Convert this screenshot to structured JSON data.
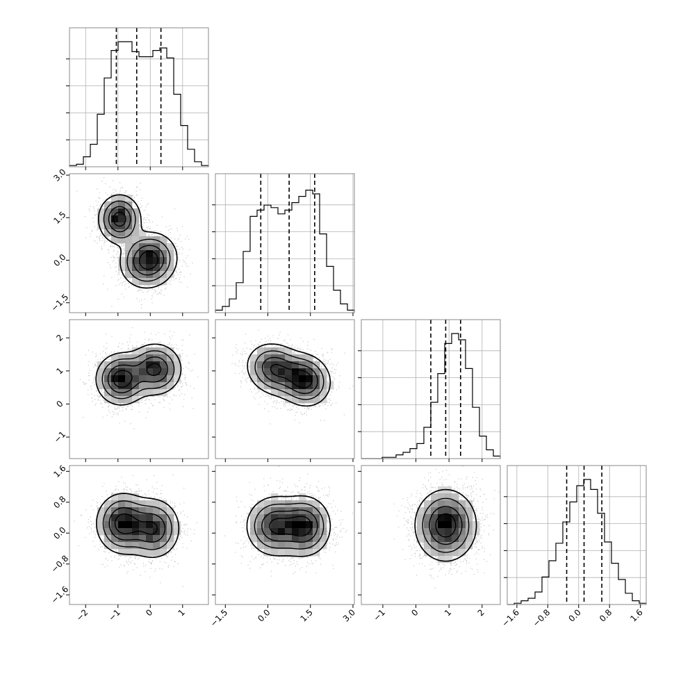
{
  "chart_data": {
    "type": "corner",
    "title": "",
    "dimensions": [
      {
        "range": [
          -2.5,
          1.8
        ],
        "ticks": [
          "−2",
          "−1",
          "0",
          "1"
        ],
        "tick_values": [
          -2,
          -1,
          0,
          1
        ],
        "quantiles": [
          -1.05,
          -0.42,
          0.33
        ]
      },
      {
        "range": [
          -1.85,
          3.05
        ],
        "ticks": [
          "−1.5",
          "0.0",
          "1.5",
          "3.0"
        ],
        "tick_values": [
          -1.5,
          0.0,
          1.5,
          3.0
        ],
        "quantiles": [
          -0.25,
          0.75,
          1.65
        ]
      },
      {
        "range": [
          -1.65,
          2.55
        ],
        "ticks": [
          "−1",
          "0",
          "1",
          "2"
        ],
        "tick_values": [
          -1,
          0,
          1,
          2
        ],
        "quantiles": [
          0.45,
          0.9,
          1.35
        ]
      },
      {
        "range": [
          -1.85,
          1.75
        ],
        "ticks": [
          "−1.6",
          "−0.8",
          "0.0",
          "0.8",
          "1.6"
        ],
        "tick_values": [
          -1.6,
          -0.8,
          0.0,
          0.8,
          1.6
        ],
        "quantiles": [
          -0.31,
          0.14,
          0.6
        ]
      }
    ],
    "histograms": [
      {
        "edges_start": -2.5,
        "bin_width": 0.215,
        "counts": [
          0.01,
          0.02,
          0.08,
          0.18,
          0.42,
          0.71,
          0.93,
          1.0,
          1.0,
          0.92,
          0.88,
          0.88,
          0.93,
          0.95,
          0.87,
          0.58,
          0.33,
          0.14,
          0.04,
          0.01
        ]
      },
      {
        "edges_start": -1.85,
        "bin_width": 0.245,
        "counts": [
          0.02,
          0.05,
          0.11,
          0.24,
          0.49,
          0.77,
          0.82,
          0.86,
          0.84,
          0.79,
          0.82,
          0.88,
          0.93,
          0.98,
          0.95,
          0.63,
          0.37,
          0.18,
          0.07,
          0.02
        ]
      },
      {
        "edges_start": -1.65,
        "bin_width": 0.21,
        "counts": [
          0.0,
          0.0,
          0.0,
          0.01,
          0.01,
          0.03,
          0.05,
          0.08,
          0.12,
          0.25,
          0.45,
          0.68,
          0.92,
          1.0,
          0.95,
          0.72,
          0.41,
          0.18,
          0.07,
          0.02
        ]
      },
      {
        "edges_start": -1.85,
        "bin_width": 0.18,
        "counts": [
          0.0,
          0.01,
          0.03,
          0.05,
          0.1,
          0.22,
          0.35,
          0.49,
          0.66,
          0.82,
          0.95,
          1.0,
          0.92,
          0.73,
          0.5,
          0.33,
          0.2,
          0.09,
          0.03,
          0.01
        ]
      }
    ],
    "pairs": [
      {
        "row": 1,
        "col": 0,
        "modes": [
          {
            "x": -0.95,
            "y": 1.45,
            "sx": 0.32,
            "sy": 0.42,
            "r": 0.0,
            "w": 1.0
          },
          {
            "x": -0.05,
            "y": 0.0,
            "sx": 0.42,
            "sy": 0.48,
            "r": -0.3,
            "w": 1.05
          }
        ]
      },
      {
        "row": 2,
        "col": 0,
        "modes": [
          {
            "x": -0.9,
            "y": 0.75,
            "sx": 0.38,
            "sy": 0.38,
            "r": 0.0,
            "w": 1.0
          },
          {
            "x": 0.15,
            "y": 1.05,
            "sx": 0.4,
            "sy": 0.38,
            "r": 0.0,
            "w": 0.9
          }
        ]
      },
      {
        "row": 2,
        "col": 1,
        "modes": [
          {
            "x": 0.25,
            "y": 1.05,
            "sx": 0.5,
            "sy": 0.38,
            "r": -0.25,
            "w": 0.9
          },
          {
            "x": 1.3,
            "y": 0.72,
            "sx": 0.45,
            "sy": 0.38,
            "r": -0.25,
            "w": 1.0
          }
        ]
      },
      {
        "row": 3,
        "col": 0,
        "modes": [
          {
            "x": -0.85,
            "y": 0.25,
            "sx": 0.4,
            "sy": 0.38,
            "r": 0.0,
            "w": 1.0
          },
          {
            "x": 0.1,
            "y": 0.12,
            "sx": 0.4,
            "sy": 0.38,
            "r": 0.0,
            "w": 0.85
          }
        ]
      },
      {
        "row": 3,
        "col": 1,
        "modes": [
          {
            "x": 0.25,
            "y": 0.18,
            "sx": 0.5,
            "sy": 0.38,
            "r": 0.0,
            "w": 0.95
          },
          {
            "x": 1.3,
            "y": 0.18,
            "sx": 0.45,
            "sy": 0.38,
            "r": 0.0,
            "w": 1.0
          }
        ]
      },
      {
        "row": 3,
        "col": 2,
        "modes": [
          {
            "x": 0.9,
            "y": 0.2,
            "sx": 0.45,
            "sy": 0.45,
            "r": 0.0,
            "w": 1.0
          }
        ]
      }
    ],
    "colors": {
      "line": "#000000",
      "grid": "#b0b0b0",
      "points": "#707070"
    },
    "grid": true,
    "xlabel": "",
    "ylabel": ""
  }
}
